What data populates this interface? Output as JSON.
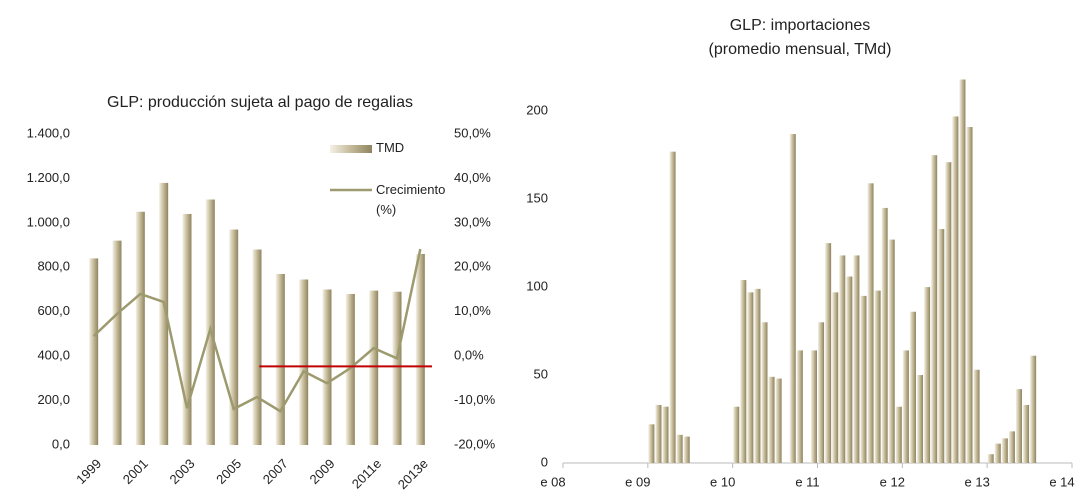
{
  "chart_data": [
    {
      "type": "bar",
      "title": "GLP: producción sujeta al pago de regalias",
      "categories": [
        "1999",
        null,
        "2001",
        null,
        "2003",
        null,
        "2005",
        null,
        "2007",
        null,
        "2009",
        null,
        "2011e",
        null,
        "2013e"
      ],
      "series": [
        {
          "name": "TMD",
          "color": "#c9bf9f",
          "values": [
            840,
            920,
            1050,
            1180,
            1040,
            1105,
            970,
            880,
            770,
            745,
            700,
            680,
            695,
            690,
            860
          ]
        },
        {
          "name": "Crecimiento (%)",
          "color": "#9c9a6e",
          "type": "line",
          "axis": "y2",
          "values": [
            4.5,
            9.5,
            14,
            12.2,
            -11.7,
            6.1,
            -11.9,
            -9.2,
            -12.4,
            -3.4,
            -6.1,
            -2.7,
            1.8,
            -0.5,
            24.1
          ]
        }
      ],
      "ylim": [
        0,
        1400
      ],
      "yticks": [
        {
          "value": 0,
          "label": "0,0"
        },
        {
          "value": 200,
          "label": "200,0"
        },
        {
          "value": 400,
          "label": "400,0"
        },
        {
          "value": 600,
          "label": "600,0"
        },
        {
          "value": 800,
          "label": "800,0"
        },
        {
          "value": 1000,
          "label": "1.000,0"
        },
        {
          "value": 1200,
          "label": "1.200,0"
        },
        {
          "value": 1400,
          "label": "1.400,0"
        }
      ],
      "y2lim": [
        -20,
        50
      ],
      "y2ticks": [
        {
          "value": -20,
          "label": "-20,0%"
        },
        {
          "value": -10,
          "label": "-10,0%"
        },
        {
          "value": 0,
          "label": "0,0%"
        },
        {
          "value": 10,
          "label": "10,0%"
        },
        {
          "value": 20,
          "label": "20,0%"
        },
        {
          "value": 30,
          "label": "30,0%"
        },
        {
          "value": 40,
          "label": "40,0%"
        },
        {
          "value": 50,
          "label": "50,0%"
        }
      ],
      "reference_line": {
        "value": -2.3,
        "axis": "y2",
        "color": "#c00000"
      }
    },
    {
      "type": "bar",
      "title": "GLP: importaciones",
      "subtitle": "(promedio mensual, TMd)",
      "color": "#c9bf9f",
      "values": [
        0,
        0,
        0,
        0,
        0,
        0,
        0,
        0,
        0,
        0,
        0,
        0,
        22,
        33,
        32,
        177,
        16,
        15,
        0,
        0,
        0,
        0,
        0,
        0,
        32,
        104,
        97,
        99,
        80,
        49,
        48,
        0,
        187,
        64,
        0,
        64,
        80,
        125,
        97,
        118,
        106,
        118,
        95,
        159,
        98,
        145,
        127,
        32,
        64,
        86,
        50,
        100,
        175,
        133,
        171,
        197,
        218,
        191,
        53,
        0,
        5,
        11,
        14,
        18,
        42,
        33,
        61,
        null,
        null,
        null,
        null,
        null
      ],
      "xlim": [
        0,
        72
      ],
      "xticks": [
        {
          "value": 0,
          "label": "e 08"
        },
        {
          "value": 12,
          "label": "e 09"
        },
        {
          "value": 24,
          "label": "e 10"
        },
        {
          "value": 36,
          "label": "e 11"
        },
        {
          "value": 48,
          "label": "e 12"
        },
        {
          "value": 60,
          "label": "e 13"
        },
        {
          "value": 72,
          "label": "e 14"
        }
      ],
      "ylim": [
        0,
        220
      ],
      "yticks": [
        0,
        50,
        100,
        150,
        200
      ]
    }
  ]
}
